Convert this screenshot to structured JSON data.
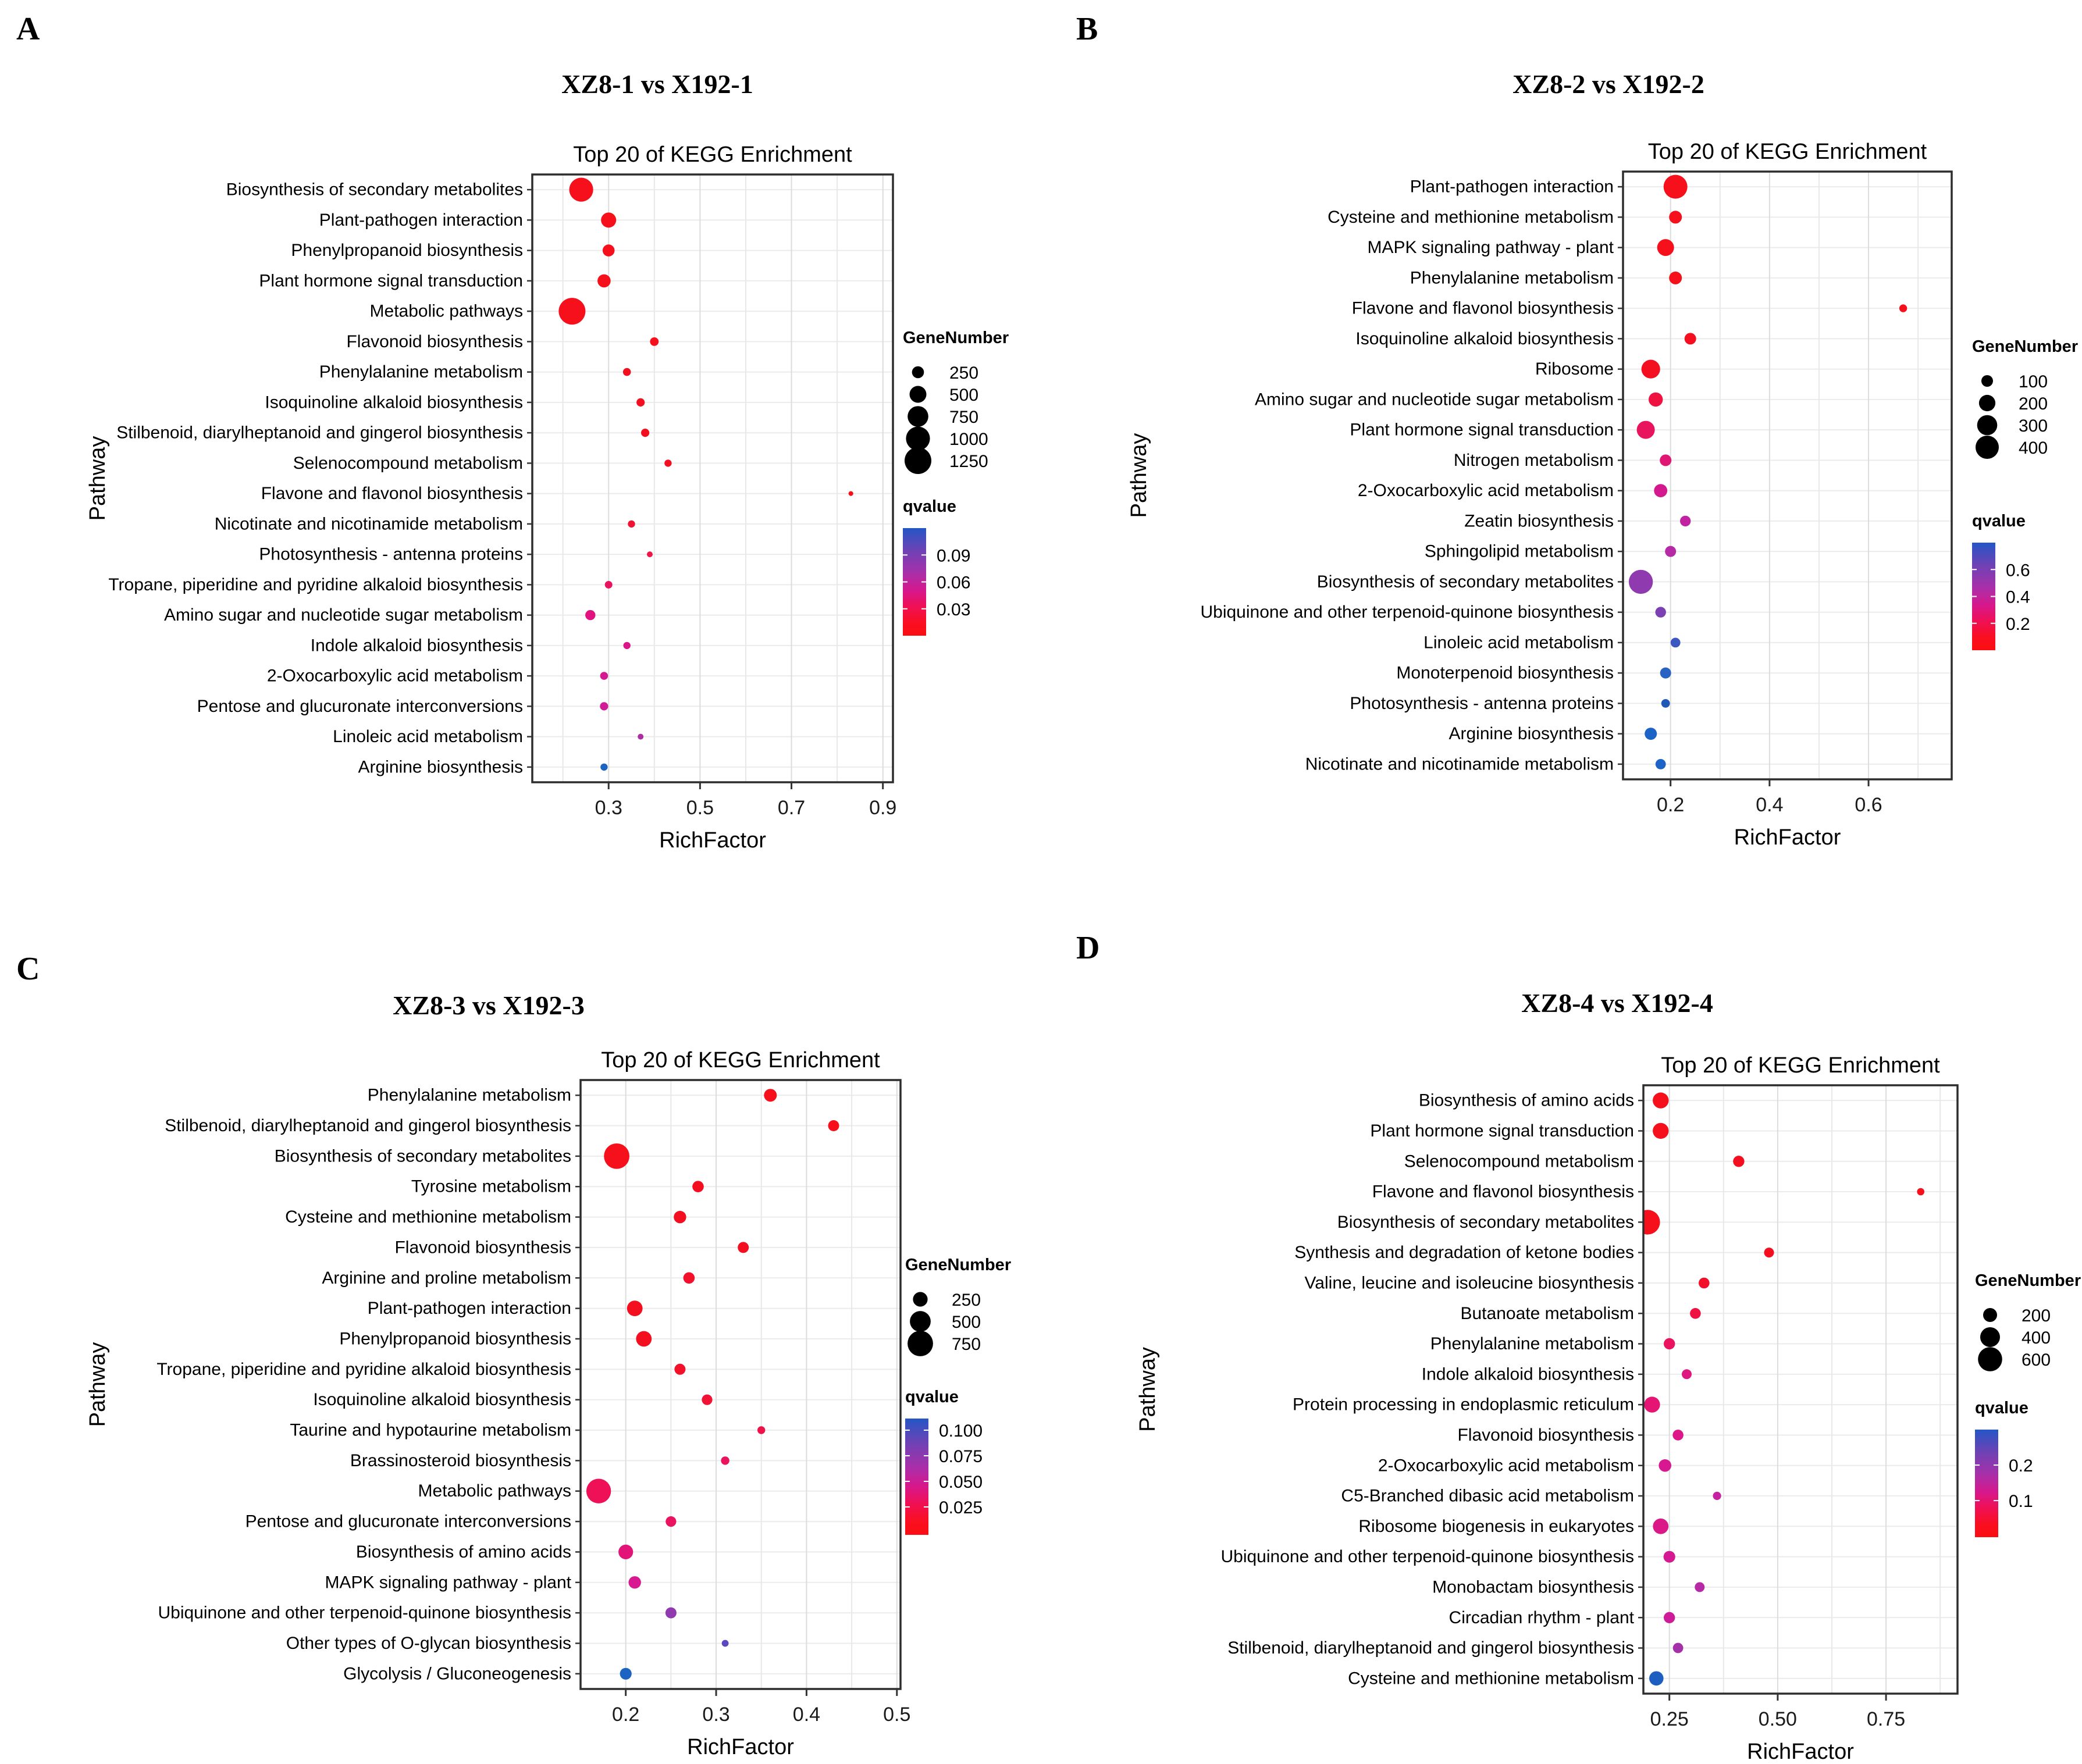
{
  "page": {
    "background": "#ffffff"
  },
  "panels": [
    {
      "label": "A",
      "title": "XZ8-1 vs X192-1",
      "subtitle": "Top 20 of KEGG Enrichment",
      "chart_data": {
        "type": "scatter",
        "xlabel": "RichFactor",
        "ylabel": "Pathway",
        "x_ticks": [
          "0.3",
          "0.5",
          "0.7",
          "0.9"
        ],
        "x_domain": [
          0.133,
          0.922
        ],
        "minor_grid_step": 0.1,
        "legend": {
          "size_title": "GeneNumber",
          "sizes": [
            250,
            500,
            750,
            1000,
            1250
          ],
          "q_title": "qvalue",
          "q_ticks": [
            "0.09",
            "0.06",
            "0.03"
          ],
          "q_tick_pos": [
            0.25,
            0.5,
            0.75
          ]
        },
        "series": [
          {
            "pathway": "Biosynthesis of secondary metabolites",
            "rich_factor": 0.24,
            "gene_number": 1000,
            "color": "#F5101B"
          },
          {
            "pathway": "Plant-pathogen interaction",
            "rich_factor": 0.3,
            "gene_number": 400,
            "color": "#F5101B"
          },
          {
            "pathway": "Phenylpropanoid biosynthesis",
            "rich_factor": 0.3,
            "gene_number": 250,
            "color": "#F5101B"
          },
          {
            "pathway": "Plant hormone signal transduction",
            "rich_factor": 0.29,
            "gene_number": 300,
            "color": "#F5101B"
          },
          {
            "pathway": "Metabolic pathways",
            "rich_factor": 0.22,
            "gene_number": 1250,
            "color": "#F5101B"
          },
          {
            "pathway": "Flavonoid biosynthesis",
            "rich_factor": 0.4,
            "gene_number": 130,
            "color": "#F5101B"
          },
          {
            "pathway": "Phenylalanine metabolism",
            "rich_factor": 0.34,
            "gene_number": 110,
            "color": "#F40F20"
          },
          {
            "pathway": "Isoquinoline alkaloid biosynthesis",
            "rich_factor": 0.37,
            "gene_number": 120,
            "color": "#F40F20"
          },
          {
            "pathway": "Stilbenoid, diarylheptanoid and gingerol biosynthesis",
            "rich_factor": 0.38,
            "gene_number": 120,
            "color": "#F40F20"
          },
          {
            "pathway": "Selenocompound metabolism",
            "rich_factor": 0.43,
            "gene_number": 90,
            "color": "#F40F20"
          },
          {
            "pathway": "Flavone and flavonol biosynthesis",
            "rich_factor": 0.83,
            "gene_number": 40,
            "color": "#F5101B"
          },
          {
            "pathway": "Nicotinate and nicotinamide metabolism",
            "rich_factor": 0.35,
            "gene_number": 90,
            "color": "#F01334"
          },
          {
            "pathway": "Photosynthesis - antenna proteins",
            "rich_factor": 0.39,
            "gene_number": 60,
            "color": "#EE1547"
          },
          {
            "pathway": "Tropane, piperidine and pyridine alkaloid biosynthesis",
            "rich_factor": 0.3,
            "gene_number": 100,
            "color": "#E9145F"
          },
          {
            "pathway": "Amino sugar and nucleotide sugar metabolism",
            "rich_factor": 0.26,
            "gene_number": 180,
            "color": "#E01380"
          },
          {
            "pathway": "Indole alkaloid biosynthesis",
            "rich_factor": 0.34,
            "gene_number": 90,
            "color": "#DA1788"
          },
          {
            "pathway": "2-Oxocarboxylic acid metabolism",
            "rich_factor": 0.29,
            "gene_number": 110,
            "color": "#D51991"
          },
          {
            "pathway": "Pentose and glucuronate interconversions",
            "rich_factor": 0.29,
            "gene_number": 120,
            "color": "#D01A97"
          },
          {
            "pathway": "Linoleic acid metabolism",
            "rich_factor": 0.37,
            "gene_number": 60,
            "color": "#AE2DA3"
          },
          {
            "pathway": "Arginine biosynthesis",
            "rich_factor": 0.29,
            "gene_number": 90,
            "color": "#1C63C2"
          }
        ]
      }
    },
    {
      "label": "B",
      "title": "XZ8-2 vs X192-2",
      "subtitle": "Top 20 of KEGG Enrichment",
      "chart_data": {
        "type": "scatter",
        "xlabel": "RichFactor",
        "ylabel": "Pathway",
        "x_ticks": [
          "0.2",
          "0.4",
          "0.6"
        ],
        "x_domain": [
          0.104,
          0.768
        ],
        "minor_grid_step": 0.1,
        "legend": {
          "size_title": "GeneNumber",
          "sizes": [
            100,
            200,
            300,
            400
          ],
          "q_title": "qvalue",
          "q_ticks": [
            "0.6",
            "0.4",
            "0.2"
          ],
          "q_tick_pos": [
            0.25,
            0.5,
            0.75
          ]
        },
        "series": [
          {
            "pathway": "Plant-pathogen interaction",
            "rich_factor": 0.21,
            "gene_number": 420,
            "color": "#F5101B"
          },
          {
            "pathway": "Cysteine and methionine metabolism",
            "rich_factor": 0.21,
            "gene_number": 120,
            "color": "#F5101B"
          },
          {
            "pathway": "MAPK signaling pathway - plant",
            "rich_factor": 0.19,
            "gene_number": 210,
            "color": "#F5101B"
          },
          {
            "pathway": "Phenylalanine metabolism",
            "rich_factor": 0.21,
            "gene_number": 120,
            "color": "#F5101B"
          },
          {
            "pathway": "Flavone and flavonol biosynthesis",
            "rich_factor": 0.67,
            "gene_number": 45,
            "color": "#F5101B"
          },
          {
            "pathway": "Isoquinoline alkaloid biosynthesis",
            "rich_factor": 0.24,
            "gene_number": 100,
            "color": "#F40F20"
          },
          {
            "pathway": "Ribosome",
            "rich_factor": 0.16,
            "gene_number": 260,
            "color": "#F40F20"
          },
          {
            "pathway": "Amino sugar and nucleotide sugar metabolism",
            "rich_factor": 0.17,
            "gene_number": 150,
            "color": "#EF1240"
          },
          {
            "pathway": "Plant hormone signal transduction",
            "rich_factor": 0.15,
            "gene_number": 240,
            "color": "#E8145E"
          },
          {
            "pathway": "Nitrogen metabolism",
            "rich_factor": 0.19,
            "gene_number": 100,
            "color": "#E01673"
          },
          {
            "pathway": "2-Oxocarboxylic acid metabolism",
            "rich_factor": 0.18,
            "gene_number": 130,
            "color": "#D4198E"
          },
          {
            "pathway": "Zeatin biosynthesis",
            "rich_factor": 0.23,
            "gene_number": 85,
            "color": "#C022A0"
          },
          {
            "pathway": "Sphingolipid metabolism",
            "rich_factor": 0.2,
            "gene_number": 90,
            "color": "#B62AA5"
          },
          {
            "pathway": "Biosynthesis of secondary metabolites",
            "rich_factor": 0.14,
            "gene_number": 430,
            "color": "#8F3AAE"
          },
          {
            "pathway": "Ubiquinone and other terpenoid-quinone biosynthesis",
            "rich_factor": 0.18,
            "gene_number": 85,
            "color": "#7C40B2"
          },
          {
            "pathway": "Linoleic acid metabolism",
            "rich_factor": 0.21,
            "gene_number": 70,
            "color": "#3A58C0"
          },
          {
            "pathway": "Monoterpenoid biosynthesis",
            "rich_factor": 0.19,
            "gene_number": 90,
            "color": "#2A62C4"
          },
          {
            "pathway": "Photosynthesis - antenna proteins",
            "rich_factor": 0.19,
            "gene_number": 55,
            "color": "#2058B8"
          },
          {
            "pathway": "Arginine biosynthesis",
            "rich_factor": 0.16,
            "gene_number": 110,
            "color": "#1C63C8"
          },
          {
            "pathway": "Nicotinate and nicotinamide metabolism",
            "rich_factor": 0.18,
            "gene_number": 80,
            "color": "#1C63C8"
          }
        ]
      }
    },
    {
      "label": "C",
      "title": "XZ8-3 vs X192-3",
      "subtitle": "Top 20 of KEGG Enrichment",
      "chart_data": {
        "type": "scatter",
        "xlabel": "RichFactor",
        "ylabel": "Pathway",
        "x_ticks": [
          "0.2",
          "0.3",
          "0.4",
          "0.5"
        ],
        "x_domain": [
          0.15,
          0.504
        ],
        "minor_grid_step": 0.05,
        "legend": {
          "size_title": "GeneNumber",
          "sizes": [
            250,
            500,
            750
          ],
          "q_title": "qvalue",
          "q_ticks": [
            "0.100",
            "0.075",
            "0.050",
            "0.025"
          ],
          "q_tick_pos": [
            0.1,
            0.32,
            0.54,
            0.76
          ]
        },
        "series": [
          {
            "pathway": "Phenylalanine metabolism",
            "rich_factor": 0.36,
            "gene_number": 190,
            "color": "#F5101B"
          },
          {
            "pathway": "Stilbenoid, diarylheptanoid and gingerol biosynthesis",
            "rich_factor": 0.43,
            "gene_number": 140,
            "color": "#F5101B"
          },
          {
            "pathway": "Biosynthesis of secondary metabolites",
            "rich_factor": 0.19,
            "gene_number": 750,
            "color": "#F5101B"
          },
          {
            "pathway": "Tyrosine metabolism",
            "rich_factor": 0.28,
            "gene_number": 150,
            "color": "#F40F20"
          },
          {
            "pathway": "Cysteine and methionine metabolism",
            "rich_factor": 0.26,
            "gene_number": 180,
            "color": "#F40F20"
          },
          {
            "pathway": "Flavonoid biosynthesis",
            "rich_factor": 0.33,
            "gene_number": 140,
            "color": "#F40F20"
          },
          {
            "pathway": "Arginine and proline metabolism",
            "rich_factor": 0.27,
            "gene_number": 150,
            "color": "#F3102A"
          },
          {
            "pathway": "Plant-pathogen interaction",
            "rich_factor": 0.21,
            "gene_number": 280,
            "color": "#F40F20"
          },
          {
            "pathway": "Phenylpropanoid biosynthesis",
            "rich_factor": 0.22,
            "gene_number": 280,
            "color": "#F40F20"
          },
          {
            "pathway": "Tropane, piperidine and pyridine alkaloid biosynthesis",
            "rich_factor": 0.26,
            "gene_number": 140,
            "color": "#F3102A"
          },
          {
            "pathway": "Isoquinoline alkaloid biosynthesis",
            "rich_factor": 0.29,
            "gene_number": 130,
            "color": "#F01335"
          },
          {
            "pathway": "Taurine and hypotaurine metabolism",
            "rich_factor": 0.35,
            "gene_number": 70,
            "color": "#ED1348"
          },
          {
            "pathway": "Brassinosteroid biosynthesis",
            "rich_factor": 0.31,
            "gene_number": 80,
            "color": "#E9145F"
          },
          {
            "pathway": "Metabolic pathways",
            "rich_factor": 0.17,
            "gene_number": 700,
            "color": "#EF1157"
          },
          {
            "pathway": "Pentose and glucuronate interconversions",
            "rich_factor": 0.25,
            "gene_number": 130,
            "color": "#EA1360"
          },
          {
            "pathway": "Biosynthesis of amino acids",
            "rich_factor": 0.2,
            "gene_number": 250,
            "color": "#E21478"
          },
          {
            "pathway": "MAPK signaling pathway - plant",
            "rich_factor": 0.21,
            "gene_number": 180,
            "color": "#D81890"
          },
          {
            "pathway": "Ubiquinone and other terpenoid-quinone biosynthesis",
            "rich_factor": 0.25,
            "gene_number": 140,
            "color": "#8F3AAE"
          },
          {
            "pathway": "Other types of O-glycan biosynthesis",
            "rich_factor": 0.31,
            "gene_number": 55,
            "color": "#5948BE"
          },
          {
            "pathway": "Glycolysis / Gluconeogenesis",
            "rich_factor": 0.2,
            "gene_number": 160,
            "color": "#1C63C2"
          }
        ]
      }
    },
    {
      "label": "D",
      "title": "XZ8-4 vs X192-4",
      "subtitle": "Top 20 of KEGG Enrichment",
      "chart_data": {
        "type": "scatter",
        "xlabel": "RichFactor",
        "ylabel": "Pathway",
        "x_ticks": [
          "0.25",
          "0.50",
          "0.75"
        ],
        "x_domain": [
          0.19,
          0.915
        ],
        "minor_grid_step": 0.125,
        "legend": {
          "size_title": "GeneNumber",
          "sizes": [
            200,
            400,
            600
          ],
          "q_title": "qvalue",
          "q_ticks": [
            "0.2",
            "0.1"
          ],
          "q_tick_pos": [
            0.33,
            0.66
          ]
        },
        "series": [
          {
            "pathway": "Biosynthesis of amino acids",
            "rich_factor": 0.23,
            "gene_number": 260,
            "color": "#F5101B"
          },
          {
            "pathway": "Plant hormone signal transduction",
            "rich_factor": 0.23,
            "gene_number": 260,
            "color": "#F5101B"
          },
          {
            "pathway": "Selenocompound metabolism",
            "rich_factor": 0.41,
            "gene_number": 130,
            "color": "#F40F20"
          },
          {
            "pathway": "Flavone and flavonol biosynthesis",
            "rich_factor": 0.83,
            "gene_number": 55,
            "color": "#F5101B"
          },
          {
            "pathway": "Biosynthesis of secondary metabolites",
            "rich_factor": 0.2,
            "gene_number": 620,
            "color": "#F5101B"
          },
          {
            "pathway": "Synthesis and degradation of ketone bodies",
            "rich_factor": 0.48,
            "gene_number": 100,
            "color": "#F40F20"
          },
          {
            "pathway": "Valine, leucine and isoleucine biosynthesis",
            "rich_factor": 0.33,
            "gene_number": 120,
            "color": "#F3102A"
          },
          {
            "pathway": "Butanoate metabolism",
            "rich_factor": 0.31,
            "gene_number": 120,
            "color": "#EF1240"
          },
          {
            "pathway": "Phenylalanine metabolism",
            "rich_factor": 0.25,
            "gene_number": 130,
            "color": "#EA1360"
          },
          {
            "pathway": "Indole alkaloid biosynthesis",
            "rich_factor": 0.29,
            "gene_number": 100,
            "color": "#DE1680"
          },
          {
            "pathway": "Protein processing in endoplasmic reticulum",
            "rich_factor": 0.21,
            "gene_number": 260,
            "color": "#E41573"
          },
          {
            "pathway": "Flavonoid biosynthesis",
            "rich_factor": 0.27,
            "gene_number": 120,
            "color": "#DC1787"
          },
          {
            "pathway": "2-Oxocarboxylic acid metabolism",
            "rich_factor": 0.24,
            "gene_number": 160,
            "color": "#D81890"
          },
          {
            "pathway": "C5-Branched dibasic acid metabolism",
            "rich_factor": 0.36,
            "gene_number": 70,
            "color": "#C521A0"
          },
          {
            "pathway": "Ribosome biogenesis in eukaryotes",
            "rich_factor": 0.23,
            "gene_number": 250,
            "color": "#DA1888"
          },
          {
            "pathway": "Ubiquinone and other terpenoid-quinone biosynthesis",
            "rich_factor": 0.25,
            "gene_number": 140,
            "color": "#D41992"
          },
          {
            "pathway": "Monobactam biosynthesis",
            "rich_factor": 0.32,
            "gene_number": 100,
            "color": "#B62AA5"
          },
          {
            "pathway": "Circadian rhythm - plant",
            "rich_factor": 0.25,
            "gene_number": 130,
            "color": "#CE1B98"
          },
          {
            "pathway": "Stilbenoid, diarylheptanoid and gingerol biosynthesis",
            "rich_factor": 0.27,
            "gene_number": 110,
            "color": "#A531A8"
          },
          {
            "pathway": "Cysteine and methionine metabolism",
            "rich_factor": 0.22,
            "gene_number": 210,
            "color": "#1C5FC0"
          }
        ]
      }
    }
  ]
}
